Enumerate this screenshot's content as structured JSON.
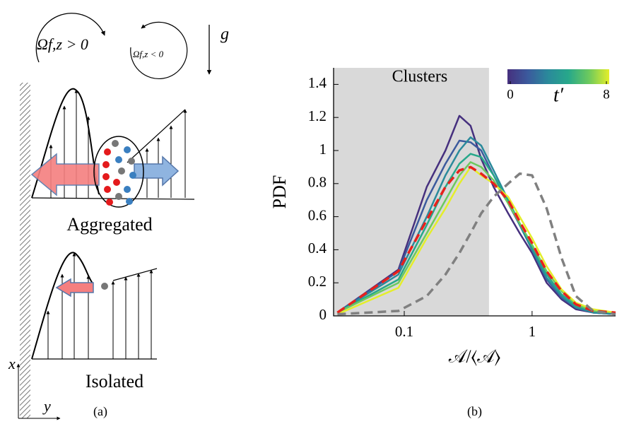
{
  "diagram": {
    "omega_positive": "Ωf,z > 0",
    "omega_negative": "Ωf,z < 0",
    "gravity": "g",
    "aggregated": "Aggregated",
    "isolated": "Isolated",
    "axis_x": "x",
    "axis_y": "y",
    "panel": "(a)"
  },
  "chart_data": {
    "type": "line",
    "panel": "(b)",
    "xlabel": "𝒜/⟨𝒜⟩",
    "ylabel": "PDF",
    "xscale": "log",
    "xlim": [
      0.028,
      4.5
    ],
    "xticks": [
      0.1,
      1
    ],
    "ylim": [
      0,
      1.5
    ],
    "yticks": [
      0,
      0.2,
      0.4,
      0.6,
      0.8,
      1,
      1.2,
      1.4
    ],
    "shaded_region": {
      "xlim": [
        0.028,
        0.46
      ],
      "label": "Clusters",
      "color": "#d9d9d9"
    },
    "colorbar": {
      "label": "t′",
      "ticks": [
        0,
        8
      ],
      "colors": [
        "#46307e",
        "#3b5a9d",
        "#2a8a9b",
        "#27a88a",
        "#6cc95e",
        "#e4ee2a"
      ]
    },
    "x": [
      0.03,
      0.09,
      0.15,
      0.21,
      0.27,
      0.33,
      0.4,
      0.5,
      0.65,
      0.8,
      1.0,
      1.3,
      1.7,
      2.2,
      3,
      4.5
    ],
    "series": [
      {
        "color": "#46307e",
        "style": "solid",
        "values": [
          0.02,
          0.28,
          0.78,
          1.0,
          1.21,
          1.15,
          0.95,
          0.78,
          0.62,
          0.5,
          0.38,
          0.2,
          0.1,
          0.04,
          0.02,
          0.01
        ]
      },
      {
        "color": "#3b5a9d",
        "style": "solid",
        "values": [
          0.02,
          0.27,
          0.7,
          0.92,
          1.06,
          1.05,
          1.0,
          0.85,
          0.68,
          0.55,
          0.4,
          0.22,
          0.11,
          0.05,
          0.02,
          0.01
        ]
      },
      {
        "color": "#2a8a9b",
        "style": "solid",
        "values": [
          0.02,
          0.25,
          0.6,
          0.85,
          1.0,
          1.08,
          1.03,
          0.88,
          0.7,
          0.55,
          0.4,
          0.23,
          0.12,
          0.05,
          0.02,
          0.01
        ]
      },
      {
        "color": "#27a88a",
        "style": "solid",
        "values": [
          0.02,
          0.22,
          0.55,
          0.78,
          0.92,
          0.98,
          0.96,
          0.85,
          0.7,
          0.56,
          0.42,
          0.25,
          0.13,
          0.06,
          0.03,
          0.02
        ]
      },
      {
        "color": "#6cc95e",
        "style": "solid",
        "values": [
          0.02,
          0.2,
          0.5,
          0.7,
          0.85,
          0.93,
          0.9,
          0.82,
          0.68,
          0.56,
          0.43,
          0.27,
          0.15,
          0.07,
          0.03,
          0.02
        ]
      },
      {
        "color": "#e4ee2a",
        "style": "solid",
        "values": [
          0.01,
          0.17,
          0.47,
          0.65,
          0.8,
          0.9,
          0.85,
          0.8,
          0.72,
          0.6,
          0.47,
          0.3,
          0.16,
          0.08,
          0.04,
          0.02
        ]
      },
      {
        "color": "#e8211c",
        "style": "dashed",
        "values": [
          0.02,
          0.27,
          0.58,
          0.78,
          0.88,
          0.9,
          0.86,
          0.8,
          0.7,
          0.57,
          0.44,
          0.27,
          0.15,
          0.07,
          0.03,
          0.02
        ]
      },
      {
        "color": "#808080",
        "style": "dashed",
        "values": [
          0.01,
          0.03,
          0.12,
          0.25,
          0.38,
          0.5,
          0.62,
          0.72,
          0.8,
          0.86,
          0.85,
          0.65,
          0.35,
          0.12,
          0.03,
          0.01
        ]
      }
    ]
  }
}
